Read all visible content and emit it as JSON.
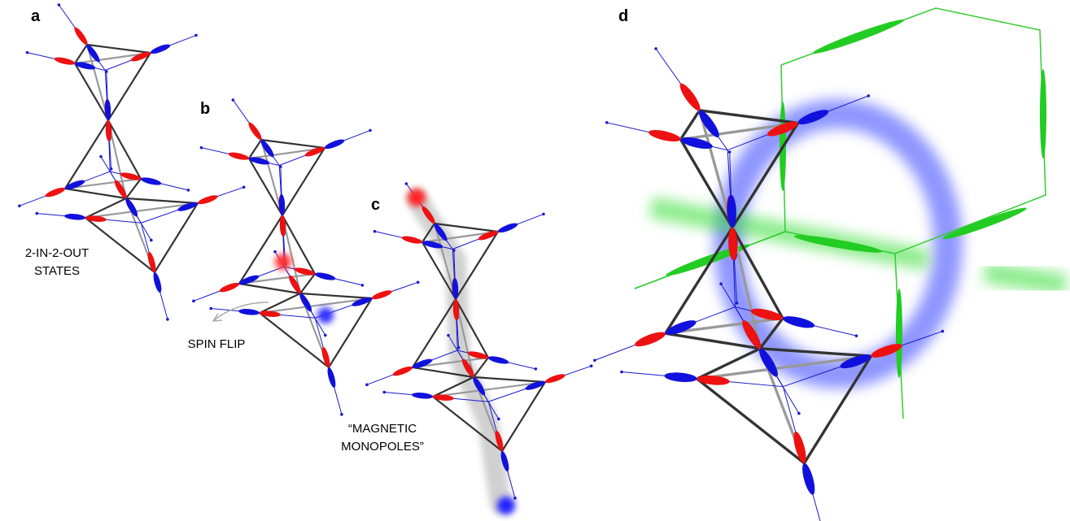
{
  "panels": [
    {
      "label": "a",
      "caption": [
        "2-IN-2-OUT",
        "STATES"
      ]
    },
    {
      "label": "b",
      "caption": [
        "SPIN FLIP"
      ]
    },
    {
      "label": "c",
      "caption": [
        "“MAGNETIC",
        "MONOPOLES”"
      ]
    },
    {
      "label": "d"
    }
  ]
}
